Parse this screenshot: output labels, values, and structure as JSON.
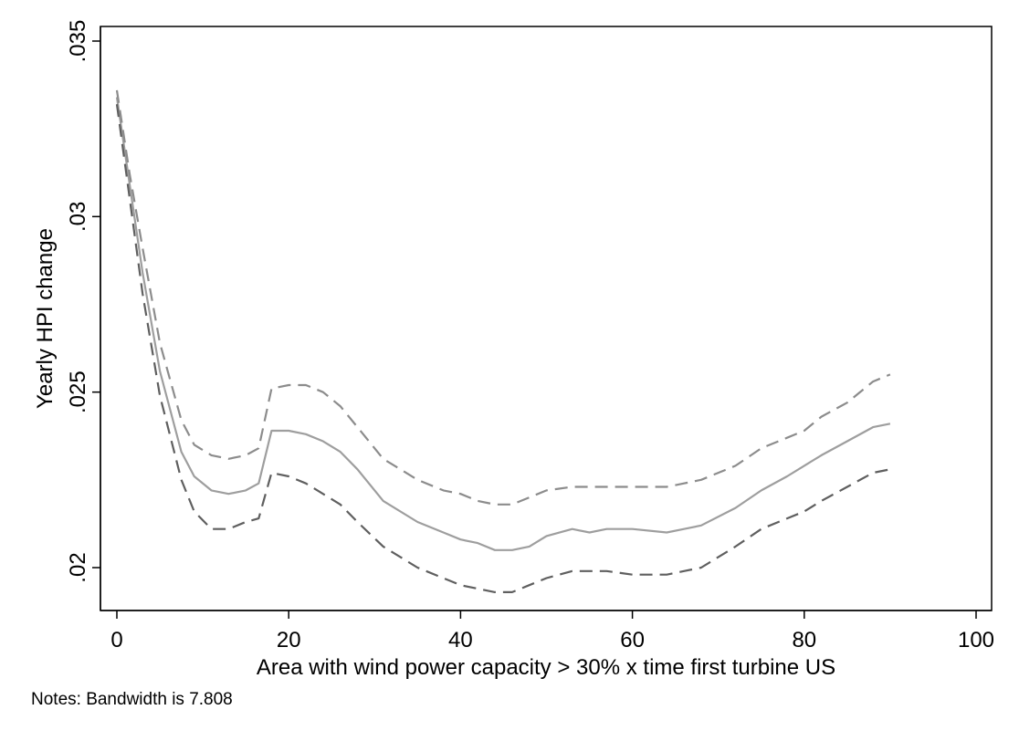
{
  "chart_data": {
    "type": "line",
    "title": "",
    "xlabel": "Area with wind power capacity > 30% x time first turbine US",
    "ylabel": "Yearly HPI change",
    "xlim": [
      0,
      100
    ],
    "ylim": [
      0.019,
      0.0351
    ],
    "xticks": [
      0,
      20,
      40,
      60,
      80,
      100
    ],
    "xtick_labels": [
      "0",
      "20",
      "40",
      "60",
      "80",
      "100"
    ],
    "yticks": [
      0.02,
      0.025,
      0.03,
      0.035
    ],
    "ytick_labels": [
      ".02",
      ".025",
      ".03",
      ".035"
    ],
    "grid": false,
    "x": [
      0,
      1.5,
      3,
      5,
      7.5,
      9,
      11,
      13,
      15,
      16.5,
      18,
      20,
      22,
      24,
      26,
      28,
      31,
      35,
      38,
      40,
      42,
      44,
      46,
      48,
      50,
      53,
      55,
      57,
      60,
      64,
      66,
      68,
      72,
      75,
      78,
      80,
      82,
      85,
      88,
      90
    ],
    "series": [
      {
        "style": "solid",
        "color": "#9e9e9e",
        "values": [
          0.0334,
          0.0309,
          0.0284,
          0.0256,
          0.0233,
          0.0226,
          0.0222,
          0.0221,
          0.0222,
          0.0224,
          0.0239,
          0.0239,
          0.0238,
          0.0236,
          0.0233,
          0.0228,
          0.0219,
          0.0213,
          0.021,
          0.0208,
          0.0207,
          0.0205,
          0.0205,
          0.0206,
          0.0209,
          0.0211,
          0.021,
          0.0211,
          0.0211,
          0.021,
          0.0211,
          0.0212,
          0.0217,
          0.0222,
          0.0226,
          0.0229,
          0.0232,
          0.0236,
          0.024,
          0.0241
        ]
      },
      {
        "style": "dashed",
        "color": "#8c8c8c",
        "values": [
          0.0336,
          0.0312,
          0.0291,
          0.0264,
          0.0242,
          0.0235,
          0.0232,
          0.0231,
          0.0232,
          0.0234,
          0.0251,
          0.0252,
          0.0252,
          0.025,
          0.0246,
          0.024,
          0.0231,
          0.0225,
          0.0222,
          0.0221,
          0.0219,
          0.0218,
          0.0218,
          0.022,
          0.0222,
          0.0223,
          0.0223,
          0.0223,
          0.0223,
          0.0223,
          0.0224,
          0.0225,
          0.0229,
          0.0234,
          0.0237,
          0.0239,
          0.0243,
          0.0247,
          0.0253,
          0.0255
        ]
      },
      {
        "style": "dashed",
        "color": "#5f5f5f",
        "values": [
          0.0332,
          0.0305,
          0.0278,
          0.0249,
          0.0225,
          0.0216,
          0.0211,
          0.0211,
          0.0213,
          0.0214,
          0.0227,
          0.0226,
          0.0224,
          0.0221,
          0.0218,
          0.0213,
          0.0206,
          0.02,
          0.0197,
          0.0195,
          0.0194,
          0.0193,
          0.0193,
          0.0195,
          0.0197,
          0.0199,
          0.0199,
          0.0199,
          0.0198,
          0.0198,
          0.0199,
          0.02,
          0.0206,
          0.0211,
          0.0214,
          0.0216,
          0.0219,
          0.0223,
          0.0227,
          0.0228
        ]
      }
    ]
  },
  "note": "Notes: Bandwidth is 7.808"
}
